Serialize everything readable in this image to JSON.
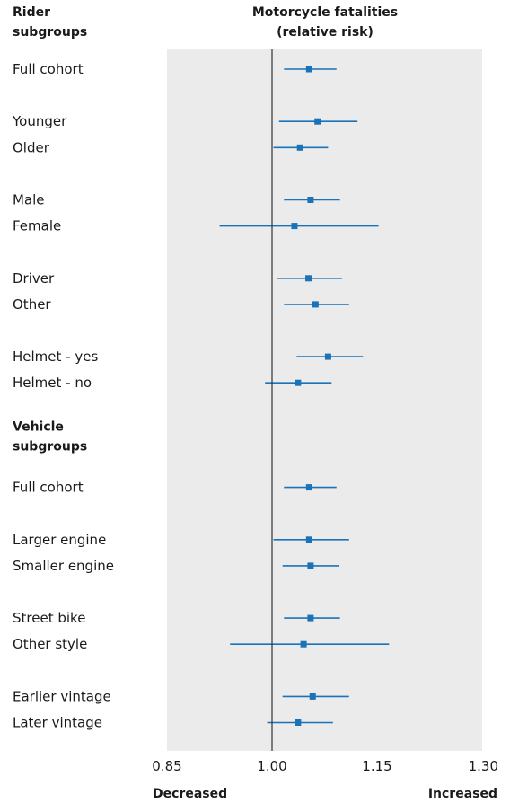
{
  "header": {
    "left_title_line1": "Rider",
    "left_title_line2": "subgroups",
    "center_title_line1": "Motorcycle fatalities",
    "center_title_line2": "(relative risk)"
  },
  "direction_labels": {
    "left": "Decreased",
    "right": "Increased"
  },
  "colors": {
    "panel": "#ebebeb",
    "marker": "#1a73b8",
    "axis": "#333333",
    "text": "#1a1a1a"
  },
  "chart_data": {
    "type": "forest",
    "title": "Motorcycle fatalities (relative risk)",
    "xlim": [
      0.85,
      1.3
    ],
    "reference_value": 1.0,
    "x_ticks": [
      "0.85",
      "1.00",
      "1.15",
      "1.30"
    ],
    "tick_values": [
      0.85,
      1.0,
      1.15,
      1.3
    ],
    "rows": [
      {
        "kind": "item",
        "label": "Full cohort",
        "est": 1.053,
        "lo": 1.017,
        "hi": 1.092
      },
      {
        "kind": "gap"
      },
      {
        "kind": "item",
        "label": "Younger",
        "est": 1.065,
        "lo": 1.01,
        "hi": 1.122
      },
      {
        "kind": "item",
        "label": "Older",
        "est": 1.04,
        "lo": 1.002,
        "hi": 1.08
      },
      {
        "kind": "gap"
      },
      {
        "kind": "item",
        "label": "Male",
        "est": 1.055,
        "lo": 1.017,
        "hi": 1.097
      },
      {
        "kind": "item",
        "label": "Female",
        "est": 1.032,
        "lo": 0.925,
        "hi": 1.152
      },
      {
        "kind": "gap"
      },
      {
        "kind": "item",
        "label": "Driver",
        "est": 1.052,
        "lo": 1.007,
        "hi": 1.1
      },
      {
        "kind": "item",
        "label": "Other",
        "est": 1.062,
        "lo": 1.017,
        "hi": 1.11
      },
      {
        "kind": "gap"
      },
      {
        "kind": "item",
        "label": "Helmet - yes",
        "est": 1.08,
        "lo": 1.035,
        "hi": 1.13
      },
      {
        "kind": "item",
        "label": "Helmet - no",
        "est": 1.037,
        "lo": 0.99,
        "hi": 1.085
      },
      {
        "kind": "gap"
      },
      {
        "kind": "header",
        "line1": "Vehicle",
        "line2": "subgroups"
      },
      {
        "kind": "item",
        "label": "Full cohort",
        "est": 1.053,
        "lo": 1.017,
        "hi": 1.092
      },
      {
        "kind": "gap"
      },
      {
        "kind": "item",
        "label": "Larger engine",
        "est": 1.053,
        "lo": 1.002,
        "hi": 1.11
      },
      {
        "kind": "item",
        "label": "Smaller engine",
        "est": 1.055,
        "lo": 1.015,
        "hi": 1.095
      },
      {
        "kind": "gap"
      },
      {
        "kind": "item",
        "label": "Street bike",
        "est": 1.055,
        "lo": 1.017,
        "hi": 1.097
      },
      {
        "kind": "item",
        "label": "Other style",
        "est": 1.045,
        "lo": 0.94,
        "hi": 1.167
      },
      {
        "kind": "gap"
      },
      {
        "kind": "item",
        "label": "Earlier vintage",
        "est": 1.058,
        "lo": 1.015,
        "hi": 1.11
      },
      {
        "kind": "item",
        "label": "Later vintage",
        "est": 1.037,
        "lo": 0.993,
        "hi": 1.087
      }
    ]
  }
}
